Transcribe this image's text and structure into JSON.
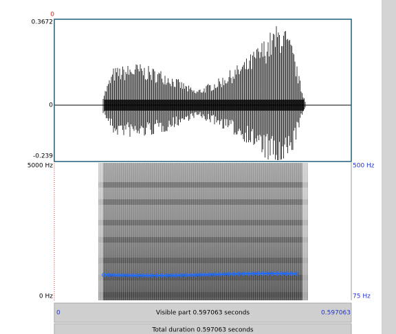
{
  "waveform": {
    "cursor": "0",
    "max": "0.3672",
    "zero": "0",
    "min": "-0.239"
  },
  "spectrogram": {
    "max_freq": "5000 Hz",
    "min_freq": "0 Hz",
    "pitch_max": "500 Hz",
    "pitch_min": "75 Hz"
  },
  "time_bar": {
    "start": "0",
    "visible": "Visible part 0.597063 seconds",
    "end": "0.597063"
  },
  "total_bar": "Total duration 0.597063 seconds"
}
